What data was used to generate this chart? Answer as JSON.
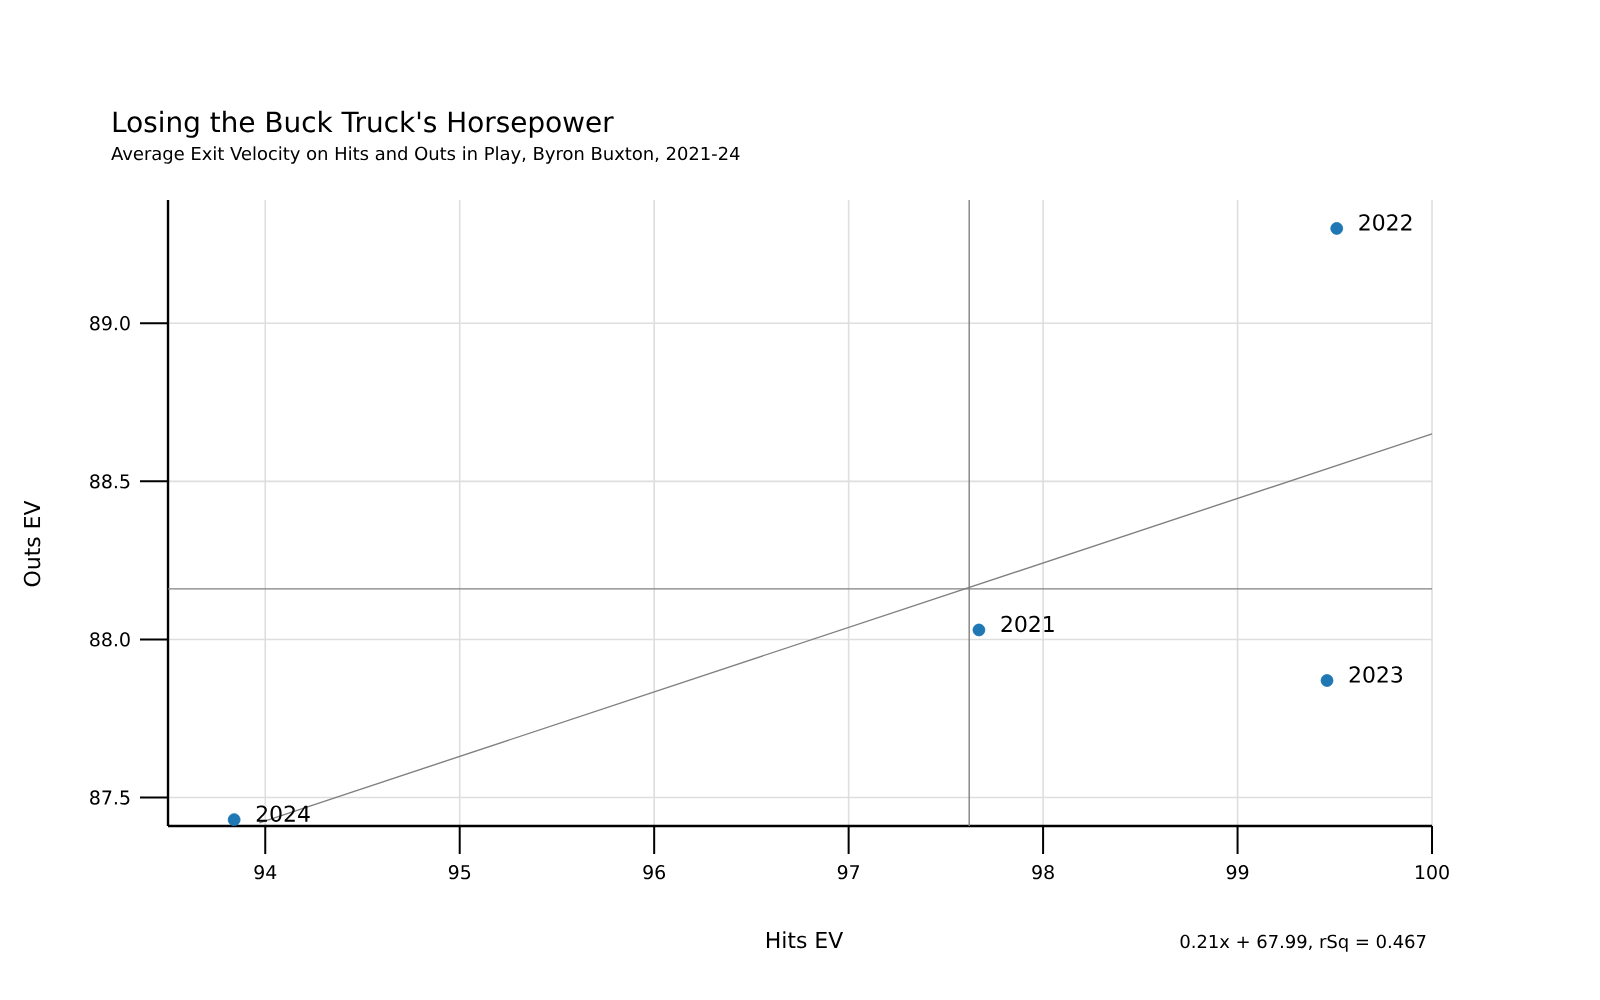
{
  "chart_data": {
    "type": "scatter",
    "title": "Losing the Buck Truck's Horsepower",
    "subtitle": "Average Exit Velocity on Hits and Outs in Play, Byron Buxton, 2021-24",
    "xlabel": "Hits EV",
    "ylabel": "Outs EV",
    "series": [
      {
        "color": "#1f77b4",
        "marker": "circle",
        "x": [
          97.67,
          99.51,
          99.46,
          93.84
        ],
        "values": [
          88.03,
          89.3,
          87.87,
          87.43
        ]
      },
      {
        "type": "line",
        "color": "#808080",
        "marker": "none",
        "x": [
          93.97,
          100
        ],
        "values": [
          87.42,
          88.65
        ]
      }
    ],
    "xlim": [
      93.5,
      100
    ],
    "ylim": [
      87.41,
      89.39
    ],
    "xticks": [
      94,
      95,
      96,
      97,
      98,
      99,
      100
    ],
    "yticks": [
      {
        "value": 87.5,
        "label": "87.5"
      },
      {
        "value": 88.0,
        "label": "88.0"
      },
      {
        "value": 88.5,
        "label": "88.5"
      },
      {
        "value": 89.0,
        "label": "89.0"
      }
    ],
    "grid": true,
    "ref_lines": [
      {
        "axis": "x",
        "value": 97.62,
        "color": "#808080"
      },
      {
        "axis": "y",
        "value": 88.16,
        "color": "#808080"
      }
    ],
    "annotations": [
      {
        "text": "2021",
        "x": 97.67,
        "y": 88.03
      },
      {
        "text": "2022",
        "x": 99.51,
        "y": 89.3
      },
      {
        "text": "2023",
        "x": 99.46,
        "y": 87.87
      },
      {
        "text": "2024",
        "x": 93.84,
        "y": 87.43
      },
      "0.21x + 67.99, rSq = 0.467"
    ]
  }
}
